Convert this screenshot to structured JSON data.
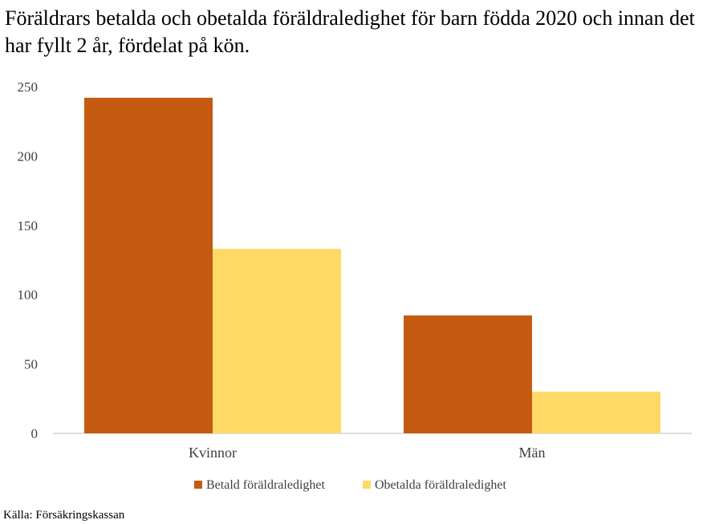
{
  "chart_data": {
    "type": "bar",
    "title": "Föräldrars betalda och obetalda föräldraledighet för barn födda 2020 och innan det har fyllt 2 år, fördelat på kön.",
    "categories": [
      "Kvinnor",
      "Män"
    ],
    "series": [
      {
        "name": "Betald föräldraledighet",
        "color": "#C55A11",
        "values": [
          242,
          85
        ]
      },
      {
        "name": "Obetalda föräldraledighet",
        "color": "#FFD966",
        "values": [
          133,
          30
        ]
      }
    ],
    "xlabel": "",
    "ylabel": "",
    "ylim": [
      0,
      250
    ],
    "yticks": [
      0,
      50,
      100,
      150,
      200,
      250
    ],
    "grid": false,
    "legend_position": "bottom",
    "source": "Källa: Försäkringskassan"
  }
}
